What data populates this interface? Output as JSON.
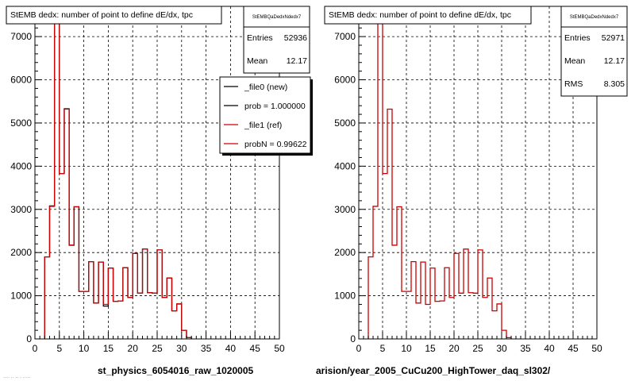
{
  "window": {
    "footer_left": "st_physics_6054016_raw_1020005",
    "footer_right": "arision/year_2005_CuCu200_HighTower_daq_sl302/",
    "footer_tiny": "···· ·· ·· · ·····"
  },
  "chart_data": [
    {
      "type": "bar",
      "title": "StEMB dedx: number of point to define dE/dx, tpc",
      "xlim": [
        0,
        50
      ],
      "ylim": [
        0,
        7700
      ],
      "xticks": [
        0,
        5,
        10,
        15,
        20,
        25,
        30,
        35,
        40,
        45,
        50
      ],
      "yticks": [
        0,
        1000,
        2000,
        3000,
        4000,
        5000,
        6000,
        7000
      ],
      "grid": true,
      "bin_width": 1,
      "stats": {
        "name": "StEMBQaDedxNdedx7",
        "rows": [
          {
            "label": "Entries",
            "value": "52936"
          },
          {
            "label": "Mean",
            "value": "12.17"
          }
        ]
      },
      "legend": {
        "position": "right",
        "entries": [
          {
            "label": "_file0 (new)",
            "color": "#000000"
          },
          {
            "label": "prob = 1.000000",
            "color": "#000000"
          },
          {
            "label": "_file1 (ref)",
            "color": "#cc0000"
          },
          {
            "label": "probN = 0.99622",
            "color": "#cc0000"
          }
        ]
      },
      "series": [
        {
          "color": "#000000",
          "x": [
            2,
            3,
            4,
            5,
            6,
            7,
            8,
            9,
            10,
            11,
            12,
            13,
            14,
            15,
            16,
            17,
            18,
            19,
            20,
            21,
            22,
            23,
            24,
            25,
            26,
            27,
            28,
            29,
            30,
            31
          ],
          "values": [
            1900,
            3080,
            7430,
            3830,
            5330,
            2170,
            3060,
            1100,
            1100,
            1790,
            830,
            1780,
            760,
            1640,
            870,
            880,
            1650,
            960,
            1980,
            1060,
            2080,
            1070,
            1060,
            2060,
            960,
            1410,
            650,
            810,
            200,
            30
          ]
        },
        {
          "color": "#cc0000",
          "x": [
            2,
            3,
            4,
            5,
            6,
            7,
            8,
            9,
            10,
            11,
            12,
            13,
            14,
            15,
            16,
            17,
            18,
            19,
            20,
            21,
            22,
            23,
            24,
            25,
            26,
            27,
            28,
            29,
            30,
            31
          ],
          "values": [
            1900,
            3070,
            7420,
            3830,
            5320,
            2170,
            3060,
            1100,
            1100,
            1790,
            830,
            1780,
            800,
            1640,
            870,
            880,
            1650,
            960,
            1980,
            1060,
            2080,
            1070,
            1060,
            2060,
            960,
            1410,
            650,
            810,
            200,
            30
          ]
        }
      ]
    },
    {
      "type": "bar",
      "title": "StEMB dedx: number of point to define dE/dx, tpc",
      "xlim": [
        0,
        50
      ],
      "ylim": [
        0,
        7700
      ],
      "xticks": [
        0,
        5,
        10,
        15,
        20,
        25,
        30,
        35,
        40,
        45,
        50
      ],
      "yticks": [
        0,
        1000,
        2000,
        3000,
        4000,
        5000,
        6000,
        7000
      ],
      "grid": true,
      "bin_width": 1,
      "stats": {
        "name": "StEMBQaDedxNdedx7",
        "rows": [
          {
            "label": "Entries",
            "value": "52971"
          },
          {
            "label": "Mean",
            "value": "12.17"
          },
          {
            "label": "RMS",
            "value": "8.305"
          }
        ]
      },
      "series": [
        {
          "color": "#cc0000",
          "x": [
            2,
            3,
            4,
            5,
            6,
            7,
            8,
            9,
            10,
            11,
            12,
            13,
            14,
            15,
            16,
            17,
            18,
            19,
            20,
            21,
            22,
            23,
            24,
            25,
            26,
            27,
            28,
            29,
            30,
            31
          ],
          "values": [
            1900,
            3070,
            7420,
            3830,
            5320,
            2170,
            3060,
            1100,
            1100,
            1790,
            830,
            1780,
            800,
            1640,
            870,
            880,
            1650,
            960,
            1980,
            1060,
            2080,
            1070,
            1060,
            2060,
            960,
            1410,
            650,
            810,
            200,
            30
          ]
        }
      ]
    }
  ]
}
